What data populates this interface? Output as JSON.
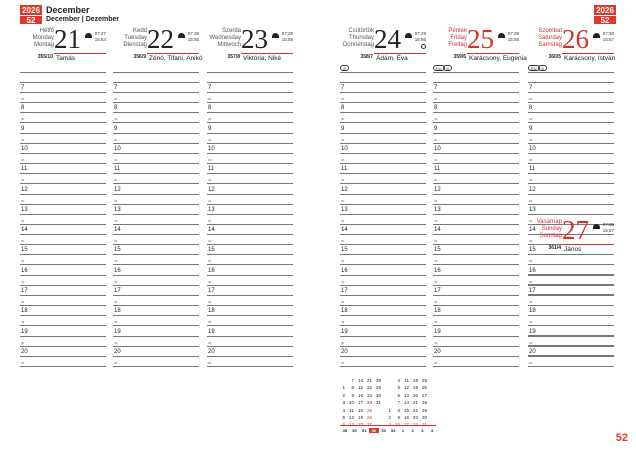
{
  "header": {
    "year": "2026",
    "week": "52",
    "month": "December",
    "month_alt": "December | Dezember"
  },
  "days": [
    {
      "names": [
        "Hétfő",
        "Monday",
        "Montag"
      ],
      "num": "21",
      "sunrise": "07:27",
      "sunset": "15:54",
      "daynum": "355/10",
      "nameday": "Tamás",
      "red": false
    },
    {
      "names": [
        "Kedd",
        "Tuesday",
        "Dienstag"
      ],
      "num": "22",
      "sunrise": "07:28",
      "sunset": "15:55",
      "daynum": "356/9",
      "nameday": "Zénó, Tifani, Anikó",
      "red": false
    },
    {
      "names": [
        "Szerda",
        "Wednesday",
        "Mittwoch"
      ],
      "num": "23",
      "sunrise": "07:29",
      "sunset": "15:55",
      "daynum": "357/8",
      "nameday": "Viktória, Niké",
      "red": false
    },
    {
      "names": [
        "Csütörtök",
        "Thursday",
        "Donnerstag"
      ],
      "num": "24",
      "sunrise": "07:29",
      "sunset": "15:56",
      "daynum": "358/7",
      "nameday": "Ádám, Éva",
      "red": false,
      "moon": "full-moon",
      "pills": [
        "⊙"
      ]
    },
    {
      "names": [
        "Péntek",
        "Friday",
        "Freitag"
      ],
      "num": "25",
      "sunrise": "07:29",
      "sunset": "15:56",
      "daynum": "359/6",
      "nameday": "Karácsony, Eugénia",
      "red": true,
      "pills": [
        "EU",
        "⊙"
      ]
    },
    {
      "names": [
        "Szombat",
        "Saturday",
        "Samstag"
      ],
      "num": "26",
      "sunrise": "07:30",
      "sunset": "15:57",
      "daynum": "360/5",
      "nameday": "Karácsony, István",
      "red": true,
      "pills": [
        "EU",
        "⊙"
      ]
    }
  ],
  "sunday": {
    "names": [
      "Vasárnap",
      "Sunday",
      "Sonntag"
    ],
    "num": "27",
    "sunrise": "07:30",
    "sunset": "15:57",
    "daynum": "361/4",
    "nameday": "János"
  },
  "hours": [
    "7",
    "8",
    "9",
    "10",
    "11",
    "12",
    "13",
    "14",
    "15",
    "16",
    "17",
    "18",
    "19",
    "20"
  ],
  "half_label": "30",
  "mini_calendar": {
    "december": [
      [
        "",
        "7",
        "14",
        "21",
        "28"
      ],
      [
        "1",
        "8",
        "15",
        "22",
        "29"
      ],
      [
        "2",
        "9",
        "16",
        "23",
        "30"
      ],
      [
        "3",
        "10",
        "17",
        "24",
        "31"
      ],
      [
        "4",
        "11",
        "18",
        "25",
        ""
      ],
      [
        "5",
        "12",
        "19",
        "26",
        ""
      ],
      [
        "6",
        "13",
        "20",
        "27",
        ""
      ]
    ],
    "january": [
      [
        "",
        "4",
        "11",
        "18",
        "25"
      ],
      [
        "",
        "5",
        "12",
        "19",
        "26"
      ],
      [
        "",
        "6",
        "13",
        "20",
        "27"
      ],
      [
        "",
        "7",
        "14",
        "21",
        "28"
      ],
      [
        "1",
        "8",
        "15",
        "22",
        "29"
      ],
      [
        "2",
        "9",
        "16",
        "23",
        "30"
      ],
      [
        "3",
        "10",
        "17",
        "24",
        "31"
      ]
    ],
    "weeks": [
      "49",
      "50",
      "51",
      "52",
      "53",
      "53",
      "1",
      "2",
      "3",
      "4"
    ],
    "current_week": "52"
  },
  "page_number": "52",
  "accent": "#e2382b"
}
